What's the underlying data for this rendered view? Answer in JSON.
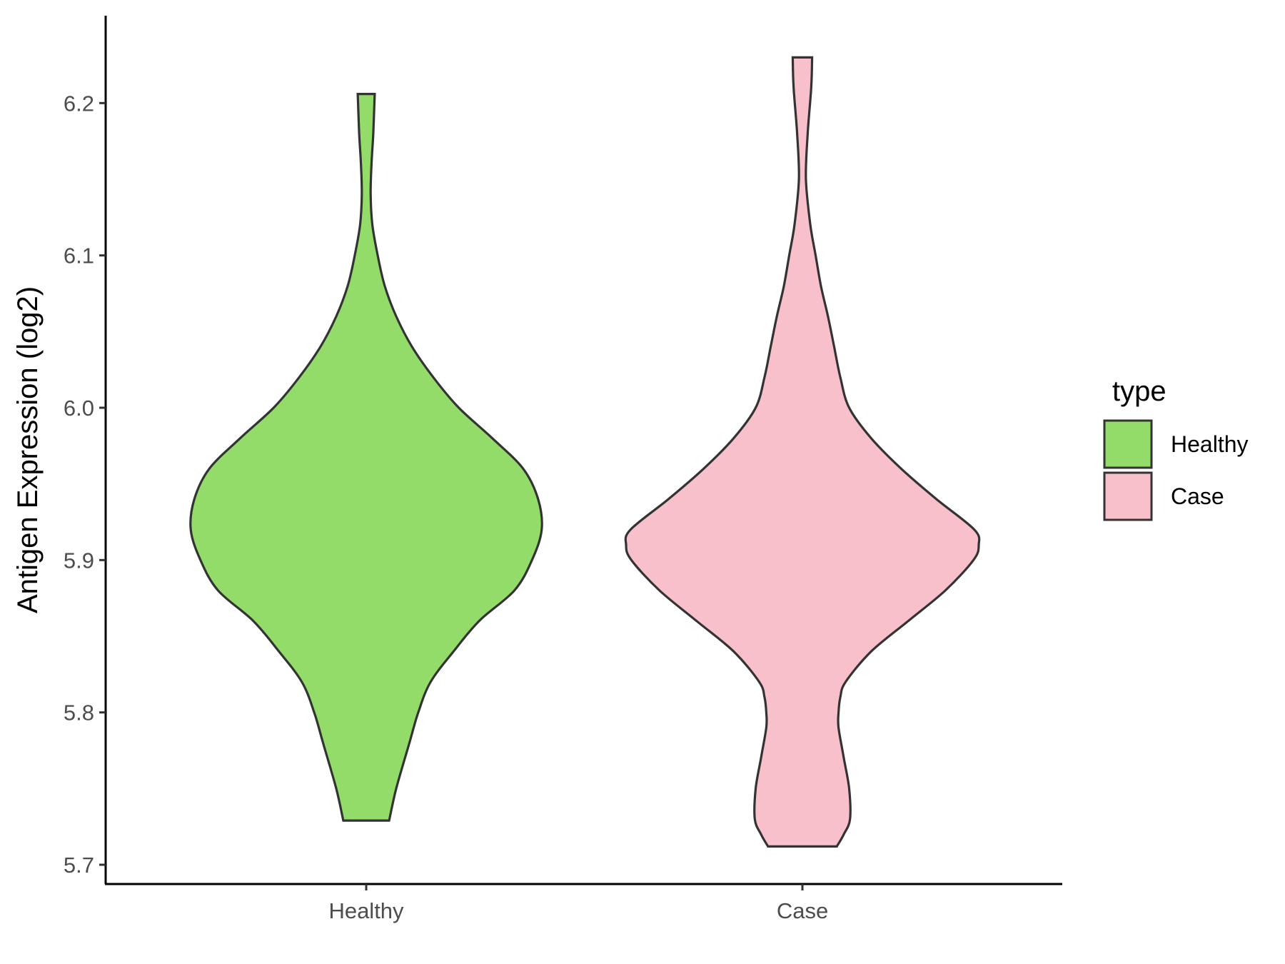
{
  "chart_data": {
    "type": "violin",
    "title": "",
    "xlabel": "",
    "ylabel": "Antigen Expression (log2)",
    "ylim": [
      5.685,
      6.255
    ],
    "yticks": [
      5.7,
      5.8,
      5.9,
      6.0,
      6.1,
      6.2
    ],
    "ytick_labels": [
      "5.7",
      "5.8",
      "5.9",
      "6.0",
      "6.1",
      "6.2"
    ],
    "categories": [
      "Healthy",
      "Case"
    ],
    "grid": false,
    "legend": {
      "title": "type",
      "position": "right",
      "entries": [
        "Healthy",
        "Case"
      ]
    },
    "series": [
      {
        "name": "Healthy",
        "color": "#93DC6A",
        "min": 5.729,
        "max": 6.206,
        "density": [
          [
            5.729,
            0.13
          ],
          [
            5.75,
            0.17
          ],
          [
            5.78,
            0.245
          ],
          [
            5.8,
            0.295
          ],
          [
            5.82,
            0.365
          ],
          [
            5.84,
            0.495
          ],
          [
            5.86,
            0.64
          ],
          [
            5.88,
            0.84
          ],
          [
            5.9,
            0.94
          ],
          [
            5.92,
            0.995
          ],
          [
            5.94,
            0.975
          ],
          [
            5.96,
            0.89
          ],
          [
            5.98,
            0.715
          ],
          [
            6.0,
            0.525
          ],
          [
            6.02,
            0.38
          ],
          [
            6.04,
            0.26
          ],
          [
            6.06,
            0.17
          ],
          [
            6.08,
            0.105
          ],
          [
            6.1,
            0.065
          ],
          [
            6.12,
            0.035
          ],
          [
            6.14,
            0.025
          ],
          [
            6.16,
            0.03
          ],
          [
            6.18,
            0.04
          ],
          [
            6.206,
            0.048
          ]
        ]
      },
      {
        "name": "Case",
        "color": "#F8C0CB",
        "min": 5.712,
        "max": 6.23,
        "density": [
          [
            5.712,
            0.195
          ],
          [
            5.72,
            0.235
          ],
          [
            5.73,
            0.27
          ],
          [
            5.75,
            0.265
          ],
          [
            5.77,
            0.235
          ],
          [
            5.79,
            0.205
          ],
          [
            5.8,
            0.205
          ],
          [
            5.81,
            0.215
          ],
          [
            5.82,
            0.245
          ],
          [
            5.84,
            0.39
          ],
          [
            5.86,
            0.6
          ],
          [
            5.88,
            0.81
          ],
          [
            5.9,
            0.97
          ],
          [
            5.91,
            1.0
          ],
          [
            5.92,
            0.975
          ],
          [
            5.94,
            0.76
          ],
          [
            5.96,
            0.56
          ],
          [
            5.98,
            0.39
          ],
          [
            6.0,
            0.265
          ],
          [
            6.02,
            0.215
          ],
          [
            6.04,
            0.18
          ],
          [
            6.06,
            0.145
          ],
          [
            6.08,
            0.105
          ],
          [
            6.1,
            0.075
          ],
          [
            6.12,
            0.045
          ],
          [
            6.15,
            0.02
          ],
          [
            6.18,
            0.03
          ],
          [
            6.21,
            0.05
          ],
          [
            6.23,
            0.055
          ]
        ]
      }
    ]
  }
}
